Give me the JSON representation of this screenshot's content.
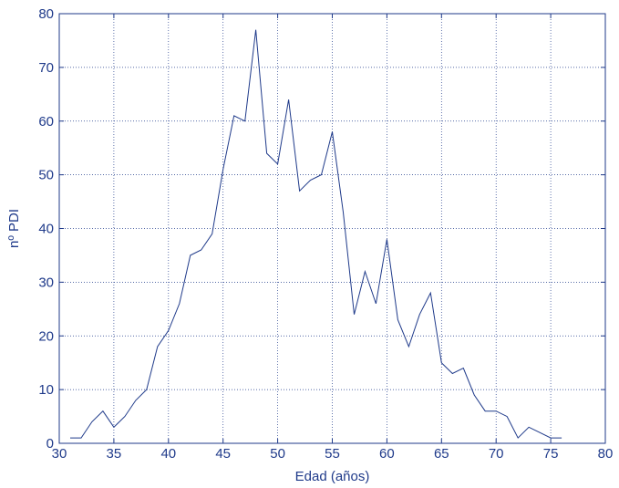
{
  "chart_data": {
    "type": "line",
    "title": "",
    "xlabel": "Edad (años)",
    "ylabel": "nº PDI",
    "xlim": [
      30,
      80
    ],
    "ylim": [
      0,
      80
    ],
    "xticks": [
      30,
      35,
      40,
      45,
      50,
      55,
      60,
      65,
      70,
      75,
      80
    ],
    "yticks": [
      0,
      10,
      20,
      30,
      40,
      50,
      60,
      70,
      80
    ],
    "grid": true,
    "colors": {
      "line": "#1f3a8a",
      "axis": "#1f3a8a",
      "grid": "#1f3a8a"
    },
    "series": [
      {
        "x": [
          31,
          32,
          33,
          34,
          35,
          36,
          37,
          38,
          39,
          40,
          41,
          42,
          43,
          44,
          45,
          46,
          47,
          48,
          49,
          50,
          51,
          52,
          53,
          54,
          55,
          56,
          57,
          58,
          59,
          60,
          61,
          62,
          63,
          64,
          65,
          66,
          67,
          68,
          69,
          70,
          71,
          72,
          73,
          74,
          75,
          76
        ],
        "y": [
          1,
          1,
          4,
          6,
          3,
          5,
          8,
          10,
          18,
          21,
          26,
          35,
          36,
          39,
          51,
          61,
          60,
          77,
          54,
          52,
          64,
          47,
          49,
          50,
          58,
          43,
          24,
          32,
          26,
          38,
          23,
          18,
          24,
          28,
          15,
          13,
          14,
          9,
          6,
          6,
          5,
          1,
          3,
          2,
          1,
          1
        ]
      }
    ]
  }
}
